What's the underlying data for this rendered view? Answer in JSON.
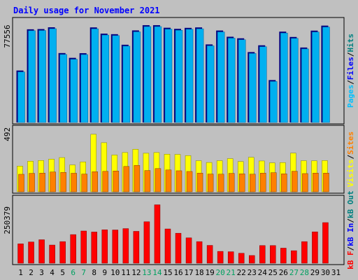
{
  "chart_data": {
    "type": "bar",
    "title": "Daily usage for November 2021",
    "days": [
      "1",
      "2",
      "3",
      "4",
      "5",
      "6",
      "7",
      "8",
      "9",
      "10",
      "11",
      "12",
      "13",
      "14",
      "15",
      "16",
      "17",
      "18",
      "19",
      "20",
      "21",
      "22",
      "23",
      "24",
      "25",
      "26",
      "27",
      "28",
      "29",
      "30",
      "31"
    ],
    "weekend_days": [
      "6",
      "7",
      "13",
      "14",
      "20",
      "21",
      "27",
      "28"
    ],
    "panels": [
      {
        "name": "pages-files-hits",
        "tick_label": "77556",
        "tick_value": 77556,
        "ylim": [
          0,
          92000
        ],
        "series": [
          {
            "name": "Pages",
            "color": "#0000A8",
            "values": [
              null,
              null,
              null,
              null,
              null,
              null,
              null,
              null,
              null,
              null,
              null,
              null,
              null,
              null,
              null,
              null,
              null,
              null,
              null,
              null,
              null,
              null,
              null,
              null,
              null,
              null,
              null,
              null,
              null,
              null,
              null
            ]
          },
          {
            "name": "Files",
            "color": "#000080",
            "values": [
              46800,
              83900,
              84100,
              85700,
              62500,
              58200,
              62400,
              85600,
              80000,
              79500,
              70000,
              82900,
              87600,
              87600,
              85300,
              84300,
              85200,
              85600,
              70300,
              82800,
              77200,
              75800,
              63400,
              69500,
              38200,
              81800,
              77000,
              67500,
              82700,
              87200,
              null
            ]
          },
          {
            "name": "Hits",
            "color": "#00B0F0",
            "values": [
              46800,
              83900,
              84100,
              85700,
              62500,
              58200,
              62400,
              85600,
              80000,
              79500,
              70000,
              82900,
              87600,
              87600,
              85300,
              84300,
              85200,
              85600,
              70300,
              82800,
              77200,
              75800,
              63400,
              69500,
              38200,
              81800,
              77000,
              67500,
              82700,
              87200,
              null
            ]
          }
        ],
        "side_labels": [
          {
            "text": "Pages",
            "color": "#00C0FF"
          },
          {
            "text": "/",
            "color": "#000000"
          },
          {
            "text": "Files",
            "color": "#0000FF"
          },
          {
            "text": "/",
            "color": "#000000"
          },
          {
            "text": "Hits",
            "color": "#008080"
          }
        ]
      },
      {
        "name": "visits-sites",
        "tick_label": "492",
        "tick_value": 492,
        "ylim": [
          0,
          545
        ],
        "series": [
          {
            "name": "Visits",
            "color": "#FFFF00",
            "values": [
              220,
              262,
              268,
              280,
              293,
              230,
              256,
              492,
              420,
              315,
              336,
              364,
              330,
              336,
              322,
              320,
              310,
              266,
              251,
              266,
              284,
              259,
              295,
              264,
              248,
              250,
              331,
              266,
              265,
              267,
              null
            ]
          },
          {
            "name": "Sites",
            "color": "#FF8000",
            "values": [
              150,
              158,
              160,
              170,
              166,
              159,
              152,
              172,
              175,
              178,
              217,
              226,
              182,
              199,
              187,
              180,
              174,
              160,
              152,
              151,
              158,
              154,
              151,
              160,
              164,
              154,
              176,
              156,
              160,
              160,
              null
            ]
          }
        ],
        "side_labels": [
          {
            "text": "Visits",
            "color": "#FFFF00"
          },
          {
            "text": "/",
            "color": "#000000"
          },
          {
            "text": "Sites",
            "color": "#FF8000"
          }
        ]
      },
      {
        "name": "kbytes",
        "tick_label": "250379",
        "tick_value": 250379,
        "ylim": [
          0,
          380000
        ],
        "series": [
          {
            "name": "kB F",
            "color": "#FF0000",
            "values": [
              113000,
              124000,
              137000,
              106000,
              126000,
              167000,
              188000,
              182000,
              195000,
              194000,
              202000,
              186000,
              242000,
              341000,
              200000,
              175000,
              148000,
              126000,
              104000,
              69000,
              67000,
              58000,
              45000,
              103000,
              103000,
              88000,
              73000,
              126000,
              183000,
              237000,
              null
            ]
          }
        ],
        "side_labels": [
          {
            "text": "kB F",
            "color": "#FF0000"
          },
          {
            "text": "/",
            "color": "#000000"
          },
          {
            "text": "kB In",
            "color": "#0000FF"
          },
          {
            "text": "/",
            "color": "#000000"
          },
          {
            "text": "kB Out",
            "color": "#008080"
          }
        ]
      }
    ]
  }
}
